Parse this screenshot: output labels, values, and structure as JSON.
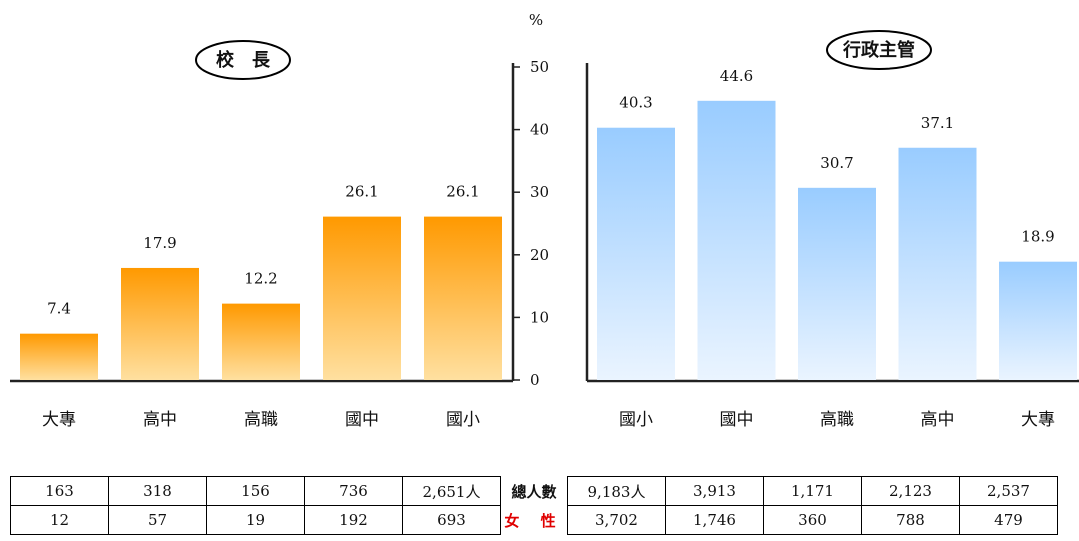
{
  "unit": "%",
  "colors": {
    "principal_bar_top": "#FF9900",
    "principal_bar_bottom": "#FFE0A0",
    "admin_bar_top": "#99CCFF",
    "admin_bar_bottom": "#EAF4FF"
  },
  "chart_data": [
    {
      "type": "bar",
      "title": "校　長",
      "categories": [
        "大專",
        "高中",
        "高職",
        "國中",
        "國小"
      ],
      "values": [
        7.4,
        17.9,
        12.2,
        26.1,
        26.1
      ],
      "ylim": [
        0,
        50
      ],
      "yticks": [
        0,
        10,
        20,
        30,
        40,
        50
      ],
      "ylabel": "%"
    },
    {
      "type": "bar",
      "title": "行政主管",
      "categories": [
        "國小",
        "國中",
        "高職",
        "高中",
        "大專"
      ],
      "values": [
        40.3,
        44.6,
        30.7,
        37.1,
        18.9
      ],
      "ylim": [
        0,
        50
      ],
      "ylabel": "%"
    }
  ],
  "table": {
    "label_total": "總人數",
    "label_female": "女 性",
    "principal_total": [
      "163",
      "318",
      "156",
      "736",
      "2,651人"
    ],
    "principal_female": [
      "12",
      "57",
      "19",
      "192",
      "693"
    ],
    "admin_total": [
      "9,183人",
      "3,913",
      "1,171",
      "2,123",
      "2,537"
    ],
    "admin_female": [
      "3,702",
      "1,746",
      "360",
      "788",
      "479"
    ]
  }
}
